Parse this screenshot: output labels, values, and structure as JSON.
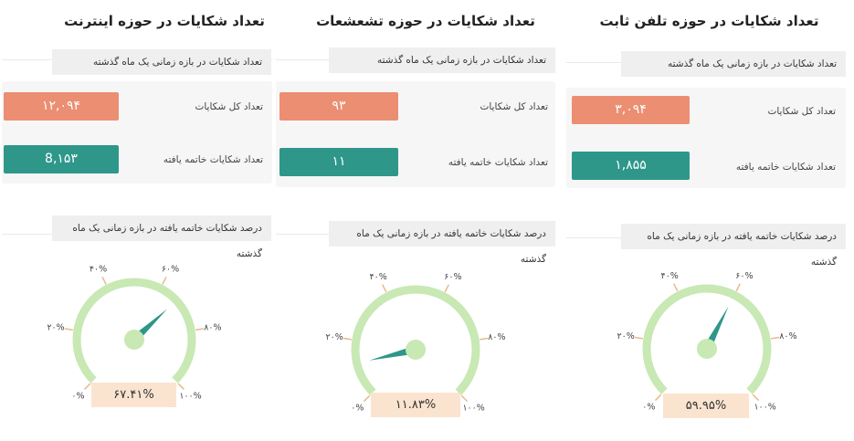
{
  "colors": {
    "total": "#ec8e72",
    "resolved": "#2e978a",
    "arc": "#c8e8b4",
    "needle": "#2e978a",
    "percent_bg": "#fbe4cf"
  },
  "gauge_ticks": [
    "۰%",
    "۲۰%",
    "۴۰%",
    "۶۰%",
    "۸۰%",
    "۱۰۰%"
  ],
  "sections": [
    {
      "title": "تعداد شکایات در حوزه اینترنت",
      "period_header": "تعداد شکایات در بازه زمانی یک ماه گذشته",
      "total_label": "تعداد کل شکایات",
      "total_value": "۱۲,۰۹۴",
      "resolved_label": "تعداد شکایات خاتمه یافته",
      "resolved_value": "8,۱۵۳",
      "gauge_header": "درصد شکایات خاتمه یافته در بازه زمانی یک ماه گذشته",
      "percent": 67.41,
      "percent_text": "۶۷.۴۱%"
    },
    {
      "title": "تعداد شکایات در حوزه تشعشعات",
      "period_header": "تعداد شکایات در بازه زمانی یک ماه گذشته",
      "total_label": "تعداد کل شکایات",
      "total_value": "۹۳",
      "resolved_label": "تعداد شکایات خاتمه یافته",
      "resolved_value": "۱۱",
      "gauge_header": "درصد شکایات خاتمه یافته در بازه زمانی یک ماه گذشته",
      "percent": 11.83,
      "percent_text": "۱۱.۸۳%"
    },
    {
      "title": "تعداد شکایات در حوزه تلفن ثابت",
      "period_header": "تعداد شکایات در بازه زمانی یک ماه گذشته",
      "total_label": "تعداد کل شکایات",
      "total_value": "۳,۰۹۴",
      "resolved_label": "تعداد شکایات خاتمه یافته",
      "resolved_value": "۱,۸۵۵",
      "gauge_header": "درصد شکایات خاتمه یافته در بازه زمانی یک ماه گذشته",
      "percent": 59.95,
      "percent_text": "۵۹.۹۵%"
    }
  ]
}
